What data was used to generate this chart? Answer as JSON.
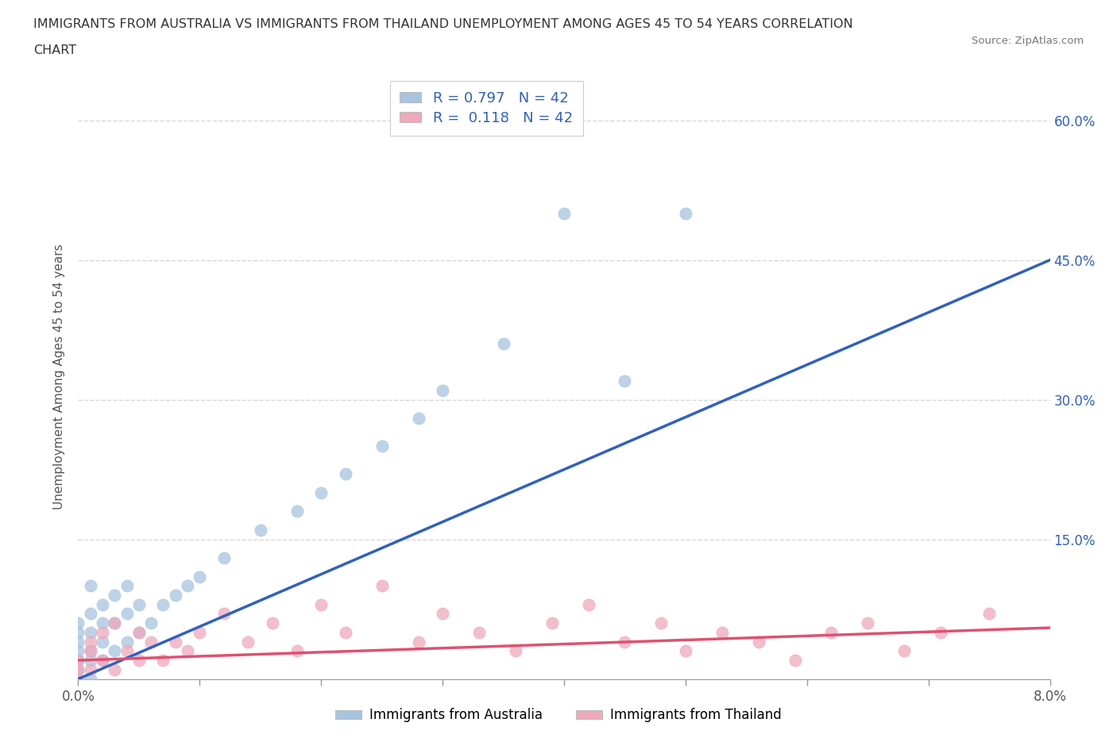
{
  "title_line1": "IMMIGRANTS FROM AUSTRALIA VS IMMIGRANTS FROM THAILAND UNEMPLOYMENT AMONG AGES 45 TO 54 YEARS CORRELATION",
  "title_line2": "CHART",
  "source": "Source: ZipAtlas.com",
  "ylabel": "Unemployment Among Ages 45 to 54 years",
  "xmin": 0.0,
  "xmax": 0.08,
  "ymin": 0.0,
  "ymax": 0.65,
  "background_color": "#ffffff",
  "australia_color": "#a8c4e0",
  "thailand_color": "#f0a8bc",
  "australia_line_color": "#3060c0",
  "thailand_line_color": "#e05070",
  "tick_label_color": "#3060c0",
  "R_australia": 0.797,
  "N_australia": 42,
  "R_thailand": 0.118,
  "N_thailand": 42,
  "legend_label_australia": "Immigrants from Australia",
  "legend_label_thailand": "Immigrants from Thailand",
  "aus_x": [
    0.0,
    0.0,
    0.0,
    0.0,
    0.0,
    0.0,
    0.0,
    0.001,
    0.001,
    0.001,
    0.001,
    0.001,
    0.001,
    0.002,
    0.002,
    0.002,
    0.002,
    0.003,
    0.003,
    0.003,
    0.004,
    0.004,
    0.004,
    0.005,
    0.005,
    0.006,
    0.007,
    0.008,
    0.009,
    0.01,
    0.012,
    0.015,
    0.018,
    0.02,
    0.022,
    0.025,
    0.028,
    0.03,
    0.035,
    0.04,
    0.045,
    0.05
  ],
  "aus_y": [
    0.0,
    0.01,
    0.02,
    0.03,
    0.04,
    0.05,
    0.06,
    0.0,
    0.02,
    0.03,
    0.05,
    0.07,
    0.1,
    0.02,
    0.04,
    0.06,
    0.08,
    0.03,
    0.06,
    0.09,
    0.04,
    0.07,
    0.1,
    0.05,
    0.08,
    0.06,
    0.08,
    0.09,
    0.1,
    0.11,
    0.13,
    0.16,
    0.18,
    0.2,
    0.22,
    0.25,
    0.28,
    0.31,
    0.36,
    0.5,
    0.32,
    0.5
  ],
  "tha_x": [
    0.0,
    0.0,
    0.0,
    0.001,
    0.001,
    0.001,
    0.002,
    0.002,
    0.003,
    0.003,
    0.004,
    0.005,
    0.005,
    0.006,
    0.007,
    0.008,
    0.009,
    0.01,
    0.012,
    0.014,
    0.016,
    0.018,
    0.02,
    0.022,
    0.025,
    0.028,
    0.03,
    0.033,
    0.036,
    0.039,
    0.042,
    0.045,
    0.048,
    0.05,
    0.053,
    0.056,
    0.059,
    0.062,
    0.065,
    0.068,
    0.071,
    0.075
  ],
  "tha_y": [
    0.0,
    0.01,
    0.02,
    0.01,
    0.03,
    0.04,
    0.02,
    0.05,
    0.01,
    0.06,
    0.03,
    0.02,
    0.05,
    0.04,
    0.02,
    0.04,
    0.03,
    0.05,
    0.07,
    0.04,
    0.06,
    0.03,
    0.08,
    0.05,
    0.1,
    0.04,
    0.07,
    0.05,
    0.03,
    0.06,
    0.08,
    0.04,
    0.06,
    0.03,
    0.05,
    0.04,
    0.02,
    0.05,
    0.06,
    0.03,
    0.05,
    0.07
  ],
  "aus_line_x0": 0.0,
  "aus_line_x1": 0.08,
  "aus_line_y0": 0.0,
  "aus_line_y1": 0.45,
  "tha_line_x0": 0.0,
  "tha_line_x1": 0.08,
  "tha_line_y0": 0.02,
  "tha_line_y1": 0.055
}
